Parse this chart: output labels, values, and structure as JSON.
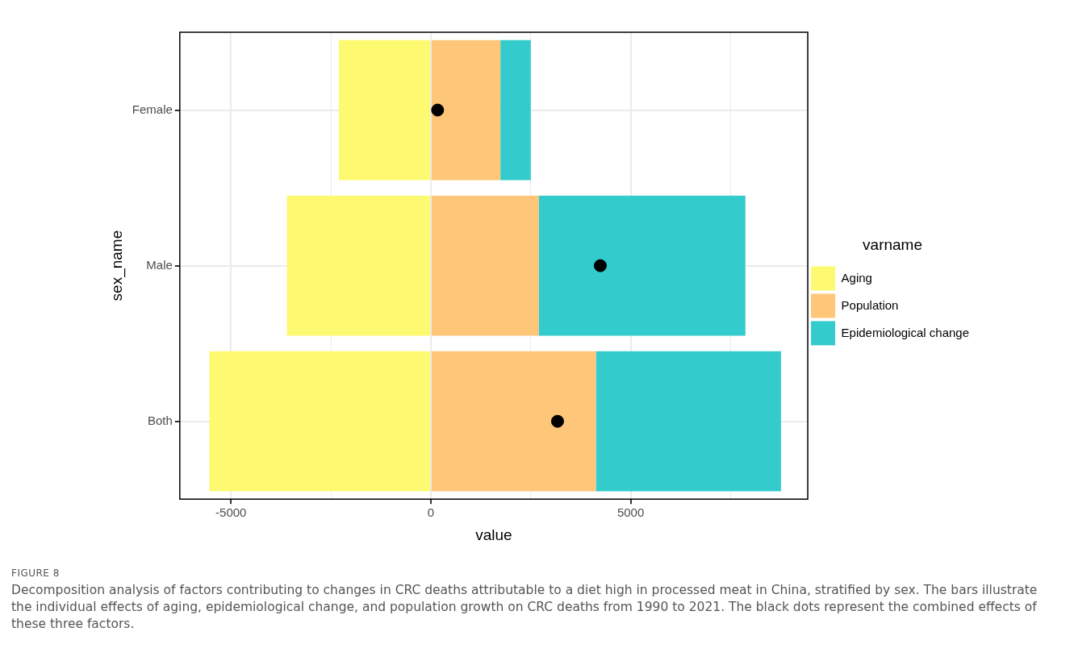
{
  "chart_data": {
    "type": "bar",
    "orientation": "horizontal",
    "stacked": true,
    "xlabel": "value",
    "ylabel": "sex_name",
    "legend_title": "varname",
    "legend": "right",
    "categories": [
      "Female",
      "Male",
      "Both"
    ],
    "series": [
      {
        "name": "Aging",
        "color": "#fdfa72",
        "values": [
          -2300,
          -3600,
          -5540
        ]
      },
      {
        "name": "Population",
        "color": "#fec679",
        "values": [
          1740,
          2700,
          4130
        ]
      },
      {
        "name": "Epidemiological change",
        "color": "#33cbcb",
        "values": [
          760,
          5170,
          4630
        ]
      },
      {
        "type": "scatter",
        "color": "#000000",
        "x": [
          "Female",
          "Male",
          "Both"
        ],
        "values": [
          170,
          4240,
          3170
        ]
      }
    ],
    "xlim": [
      -6280,
      9430
    ],
    "xticks": [
      -5000,
      {
        "value": -2500,
        "label": null
      },
      0,
      {
        "value": 2500,
        "label": null
      },
      5000,
      {
        "value": 7500,
        "label": null
      }
    ],
    "grid": true,
    "marker": "circle",
    "annotations": [
      "FIGURE 8",
      "Decomposition analysis of factors contributing to changes in CRC deaths attributable to a diet high in processed meat in China, stratified by sex. The bars illustrate the individual effects of aging, epidemiological change, and population growth on CRC deaths from 1990 to 2021. The black dots represent the combined effects of these three factors."
    ]
  }
}
